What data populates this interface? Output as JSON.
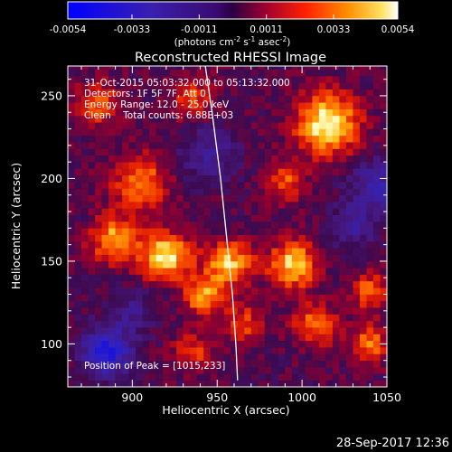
{
  "chart_data": {
    "type": "heatmap",
    "title": "Reconstructed RHESSI Image",
    "xlabel": "Heliocentric X (arcsec)",
    "ylabel": "Heliocentric Y (arcsec)",
    "xlim": [
      862,
      1050
    ],
    "ylim": [
      74,
      268
    ],
    "x_ticks": [
      900,
      950,
      1000,
      1050
    ],
    "y_ticks": [
      100,
      150,
      200,
      250
    ],
    "colorbar": {
      "range": [
        -0.0054,
        0.0054
      ],
      "ticks": [
        "-0.0054",
        "-0.0033",
        "-0.0011",
        "0.0011",
        "0.0033",
        "0.0054"
      ],
      "label_main": "(photons cm",
      "label_sup1": "-2",
      "label_mid1": " s",
      "label_sup2": "-1",
      "label_mid2": " asec",
      "label_sup3": "-2",
      "label_end": ")"
    },
    "annotations": [
      "31-Oct-2015 05:03:32.000 to 05:13:32.000",
      "Detectors: 1F 5F 7F, Att 0",
      "Energy Range: 12.0 - 25.0 keV",
      "Clean    Total counts: 6.88E+03"
    ],
    "peak_label": "Position of Peak = [1015,233]",
    "limb_curve": [
      [
        943,
        268
      ],
      [
        947,
        240
      ],
      [
        952,
        200
      ],
      [
        956,
        160
      ],
      [
        959,
        130
      ],
      [
        961,
        100
      ],
      [
        962,
        78
      ]
    ],
    "sources": [
      {
        "x": 1015,
        "y": 233,
        "amp": 1.0,
        "s": 13
      },
      {
        "x": 920,
        "y": 153,
        "amp": 0.95,
        "s": 10
      },
      {
        "x": 890,
        "y": 163,
        "amp": 0.75,
        "s": 10
      },
      {
        "x": 957,
        "y": 148,
        "amp": 0.8,
        "s": 10
      },
      {
        "x": 995,
        "y": 148,
        "amp": 0.85,
        "s": 10
      },
      {
        "x": 905,
        "y": 198,
        "amp": 0.6,
        "s": 12
      },
      {
        "x": 942,
        "y": 128,
        "amp": 0.7,
        "s": 8
      },
      {
        "x": 880,
        "y": 245,
        "amp": 0.55,
        "s": 9
      },
      {
        "x": 935,
        "y": 248,
        "amp": 0.5,
        "s": 9
      },
      {
        "x": 990,
        "y": 198,
        "amp": 0.5,
        "s": 8
      },
      {
        "x": 965,
        "y": 112,
        "amp": 0.5,
        "s": 8
      },
      {
        "x": 1008,
        "y": 112,
        "amp": 0.6,
        "s": 9
      },
      {
        "x": 1040,
        "y": 100,
        "amp": 0.6,
        "s": 8
      },
      {
        "x": 1040,
        "y": 132,
        "amp": 0.55,
        "s": 8
      },
      {
        "x": 935,
        "y": 95,
        "amp": 0.45,
        "s": 8
      },
      {
        "x": 1045,
        "y": 195,
        "amp": -0.5,
        "s": 12
      },
      {
        "x": 885,
        "y": 95,
        "amp": -0.85,
        "s": 10
      },
      {
        "x": 945,
        "y": 215,
        "amp": -0.4,
        "s": 12
      },
      {
        "x": 1030,
        "y": 170,
        "amp": -0.35,
        "s": 10
      },
      {
        "x": 900,
        "y": 120,
        "amp": -0.3,
        "s": 10
      }
    ]
  },
  "footer_timestamp": "28-Sep-2017 12:36"
}
